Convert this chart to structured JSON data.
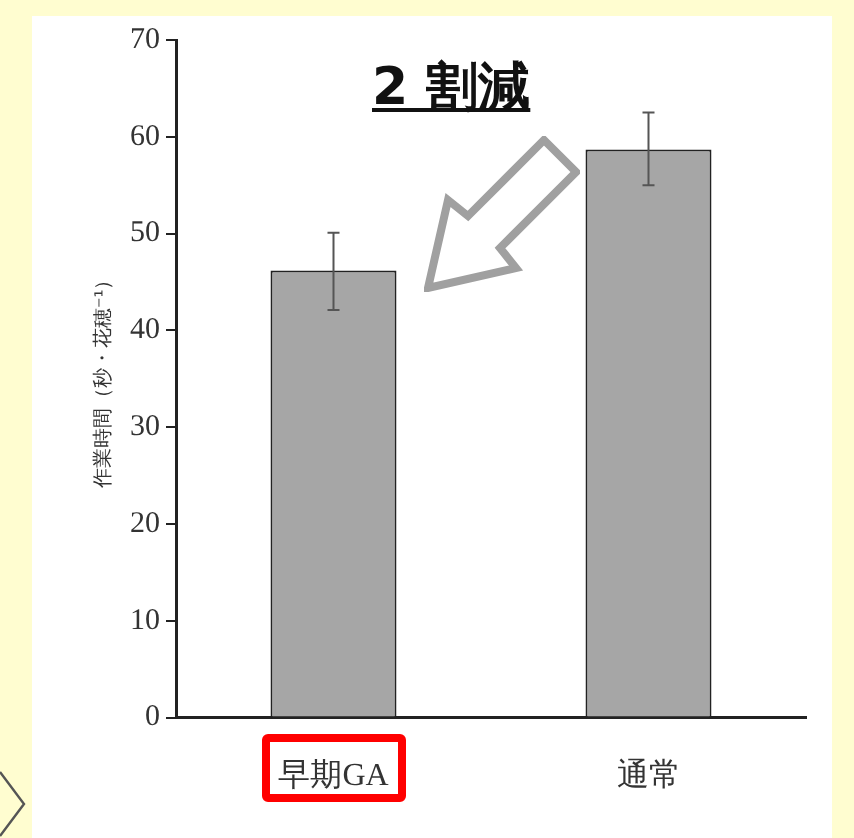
{
  "chart_data": {
    "type": "bar",
    "ylabel": "作業時間（秒・花穂⁻¹）",
    "categories": [
      "早期GA",
      "通常"
    ],
    "values": [
      46.2,
      58.7
    ],
    "errors": [
      [
        42.1,
        50.1
      ],
      [
        55,
        62.5
      ]
    ],
    "color": "#a6a6a6",
    "ylim": [
      0,
      70
    ],
    "yticks": [
      0,
      10,
      20,
      30,
      40,
      50,
      60,
      70
    ],
    "grid": false,
    "annotations": [
      "2 割減"
    ]
  }
}
